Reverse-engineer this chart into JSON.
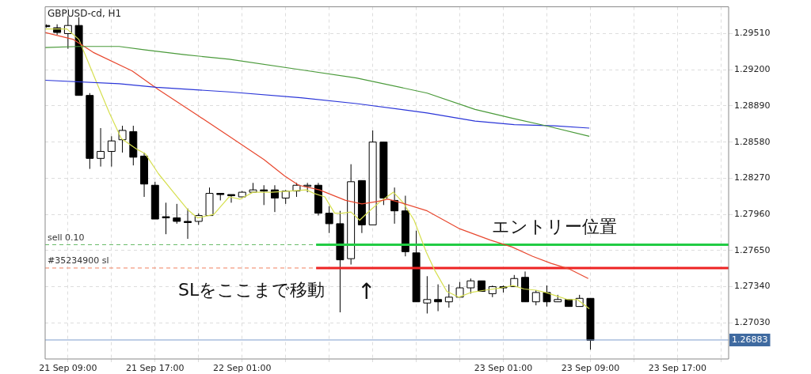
{
  "chart_data": {
    "type": "candlestick",
    "title": "GBPUSD-cd, H1",
    "color": "#000000",
    "colors": [
      "#000000",
      "#000000",
      "#ffffff",
      "#000000",
      "#000000",
      "#ffffff",
      "#ffffff",
      "#ffffff",
      "#000000",
      "#000000",
      "#000000",
      "#000000",
      "#000000",
      "#000000",
      "#ffffff",
      "#ffffff",
      "#000000",
      "#000000",
      "#ffffff",
      "#ffffff",
      "#000000",
      "#000000",
      "#ffffff",
      "#ffffff",
      "#ffffff",
      "#000000",
      "#000000",
      "#000000",
      "#ffffff",
      "#000000",
      "#ffffff",
      "#000000",
      "#000000",
      "#000000",
      "#000000",
      "#ffffff",
      "#000000",
      "#ffffff",
      "#ffffff",
      "#ffffff",
      "#000000",
      "#ffffff",
      "#000000",
      "#ffffff",
      "#000000",
      "#ffffff",
      "#000000",
      "#ffffff",
      "#000000",
      "#ffffff",
      "#000000"
    ],
    "x": [
      "--09-21T07:00",
      "--09-21T08:00",
      "--09-21T09:00",
      "--09-21T10:00",
      "--09-21T11:00",
      "--09-21T12:00",
      "--09-21T13:00",
      "--09-21T14:00",
      "--09-21T15:00",
      "--09-21T16:00",
      "--09-21T17:00",
      "--09-21T18:00",
      "--09-21T19:00",
      "--09-21T20:00",
      "--09-21T21:00",
      "--09-21T22:00",
      "--09-21T23:00",
      "--09-22T00:00",
      "--09-22T01:00",
      "--09-22T02:00",
      "--09-22T03:00",
      "--09-22T04:00",
      "--09-22T05:00",
      "--09-22T06:00",
      "--09-22T07:00",
      "--09-22T08:00",
      "--09-22T09:00",
      "--09-22T10:00",
      "--09-22T11:00",
      "--09-22T12:00",
      "--09-22T13:00",
      "--09-22T14:00",
      "--09-22T15:00",
      "--09-22T16:00",
      "--09-22T17:00",
      "--09-22T18:00",
      "--09-22T19:00",
      "--09-22T20:00",
      "--09-22T21:00",
      "--09-22T22:00",
      "--09-22T23:00",
      "--09-23T00:00",
      "--09-23T01:00",
      "--09-23T02:00",
      "--09-23T03:00",
      "--09-23T04:00",
      "--09-23T05:00",
      "--09-23T06:00",
      "--09-23T07:00",
      "--09-23T08:00",
      "--09-23T09:00"
    ],
    "ohlc": [
      [
        1.2958,
        1.2959,
        1.2956,
        1.2957
      ],
      [
        1.2956,
        1.2959,
        1.295,
        1.2952
      ],
      [
        1.2951,
        1.2966,
        1.2938,
        1.2958
      ],
      [
        1.2958,
        1.2965,
        1.2898,
        1.2898
      ],
      [
        1.2898,
        1.29,
        1.2835,
        1.2844
      ],
      [
        1.2844,
        1.287,
        1.2837,
        1.285
      ],
      [
        1.285,
        1.2863,
        1.2837,
        1.2859
      ],
      [
        1.286,
        1.2872,
        1.2849,
        1.2868
      ],
      [
        1.2867,
        1.2872,
        1.2838,
        1.2845
      ],
      [
        1.2846,
        1.2849,
        1.2811,
        1.2822
      ],
      [
        1.2821,
        1.2824,
        1.2792,
        1.2792
      ],
      [
        1.2794,
        1.2806,
        1.2779,
        1.2793
      ],
      [
        1.2793,
        1.2805,
        1.2788,
        1.279
      ],
      [
        1.279,
        1.2801,
        1.2775,
        1.279
      ],
      [
        1.279,
        1.2797,
        1.2787,
        1.2795
      ],
      [
        1.2795,
        1.2819,
        1.2795,
        1.2814
      ],
      [
        1.2814,
        1.2814,
        1.2808,
        1.2813
      ],
      [
        1.2813,
        1.2813,
        1.2806,
        1.2812
      ],
      [
        1.2811,
        1.2816,
        1.2811,
        1.2815
      ],
      [
        1.2815,
        1.2823,
        1.2815,
        1.2817
      ],
      [
        1.2817,
        1.2821,
        1.2804,
        1.2817
      ],
      [
        1.2817,
        1.2821,
        1.2798,
        1.281
      ],
      [
        1.281,
        1.2817,
        1.2805,
        1.2816
      ],
      [
        1.2816,
        1.2823,
        1.2811,
        1.2821
      ],
      [
        1.282,
        1.2823,
        1.2815,
        1.2821
      ],
      [
        1.2821,
        1.2823,
        1.2795,
        1.2797
      ],
      [
        1.2797,
        1.2803,
        1.278,
        1.2788
      ],
      [
        1.2788,
        1.2799,
        1.2712,
        1.2757
      ],
      [
        1.2758,
        1.2839,
        1.2753,
        1.2824
      ],
      [
        1.2825,
        1.2825,
        1.278,
        1.2787
      ],
      [
        1.2787,
        1.2868,
        1.2787,
        1.2858
      ],
      [
        1.2858,
        1.2858,
        1.2804,
        1.281
      ],
      [
        1.2808,
        1.2819,
        1.2788,
        1.2799
      ],
      [
        1.2799,
        1.2812,
        1.276,
        1.2764
      ],
      [
        1.2763,
        1.2782,
        1.2721,
        1.2721
      ],
      [
        1.272,
        1.2743,
        1.2711,
        1.2723
      ],
      [
        1.2723,
        1.2736,
        1.2713,
        1.2721
      ],
      [
        1.2721,
        1.2736,
        1.2716,
        1.2725
      ],
      [
        1.2725,
        1.2738,
        1.2725,
        1.2733
      ],
      [
        1.2733,
        1.2741,
        1.2728,
        1.2739
      ],
      [
        1.2739,
        1.2739,
        1.273,
        1.273
      ],
      [
        1.2728,
        1.2735,
        1.2725,
        1.2734
      ],
      [
        1.2734,
        1.2735,
        1.2729,
        1.2734
      ],
      [
        1.2734,
        1.2744,
        1.2734,
        1.2741
      ],
      [
        1.2742,
        1.2747,
        1.2721,
        1.2721
      ],
      [
        1.2721,
        1.2731,
        1.2718,
        1.2729
      ],
      [
        1.2729,
        1.2735,
        1.2717,
        1.2721
      ],
      [
        1.2721,
        1.2727,
        1.2721,
        1.2723
      ],
      [
        1.2723,
        1.2723,
        1.2717,
        1.2717
      ],
      [
        1.2717,
        1.2727,
        1.2717,
        1.2724
      ],
      [
        1.2724,
        1.2724,
        1.268,
        1.2688
      ]
    ],
    "series": [
      {
        "type": "line",
        "color": "#4a9a3a",
        "x": [
          "--09-21T06:54",
          "--09-21T10:00",
          "--09-21T13:42",
          "--09-21T16:06",
          "--09-21T19:42",
          "--09-21T23:48",
          "--09-22T06:24",
          "--09-22T11:30",
          "--09-22T18:00",
          "--09-22T22:24",
          "--09-23T02:00",
          "--09-23T04:54",
          "--09-23T08:54"
        ],
        "values": [
          1.2939,
          1.294,
          1.294,
          1.2937,
          1.2933,
          1.2929,
          1.292,
          1.2913,
          1.29,
          1.2886,
          1.2878,
          1.2872,
          1.2863
        ]
      },
      {
        "type": "line",
        "color": "#2a35d8",
        "x": [
          "--09-21T06:54",
          "--09-21T13:42",
          "--09-21T17:06",
          "--09-21T23:48",
          "--09-22T06:24",
          "--09-22T11:30",
          "--09-22T18:00",
          "--09-22T22:24",
          "--09-23T02:00",
          "--09-23T05:42",
          "--09-23T08:54"
        ],
        "values": [
          1.2911,
          1.2908,
          1.2905,
          1.2901,
          1.2896,
          1.2891,
          1.2883,
          1.2876,
          1.2873,
          1.2872,
          1.287
        ]
      },
      {
        "type": "line",
        "color": "#e8482f",
        "x": [
          "--09-21T06:54",
          "--09-21T09:30",
          "--09-21T11:18",
          "--09-21T14:54",
          "--09-21T17:18",
          "--09-21T20:54",
          "--09-21T23:48",
          "--09-22T03:00",
          "--09-22T04:54",
          "--09-22T06:12",
          "--09-22T08:06",
          "--09-22T10:30",
          "--09-22T12:00",
          "--09-22T13:24",
          "--09-22T14:24",
          "--09-22T15:36",
          "--09-22T18:00",
          "--09-22T20:54",
          "--09-22T23:48",
          "--09-23T01:48",
          "--09-23T03:42",
          "--09-23T05:24",
          "--09-23T07:06",
          "--09-23T08:48"
        ],
        "values": [
          1.2952,
          1.2946,
          1.2935,
          1.2919,
          1.2903,
          1.2881,
          1.2863,
          1.2843,
          1.2829,
          1.2821,
          1.2817,
          1.2808,
          1.2805,
          1.2807,
          1.2809,
          1.2806,
          1.2799,
          1.2784,
          1.2774,
          1.2768,
          1.276,
          1.2754,
          1.2749,
          1.2741
        ]
      },
      {
        "type": "line",
        "color": "#d6df4f",
        "x": [
          "--09-21T06:54",
          "--09-21T08:54",
          "--09-21T10:00",
          "--09-21T11:30",
          "--09-21T12:48",
          "--09-21T13:54",
          "--09-21T15:18",
          "--09-21T16:06",
          "--09-21T17:18",
          "--09-21T18:36",
          "--09-21T20:00",
          "--09-21T20:54",
          "--09-21T22:24",
          "--09-21T23:48",
          "--09-22T00:48",
          "--09-22T02:00",
          "--09-22T03:42",
          "--09-22T05:24",
          "--09-22T06:54",
          "--09-22T07:36",
          "--09-22T08:36",
          "--09-22T09:30",
          "--09-22T10:12",
          "--09-22T11:00",
          "--09-22T11:48",
          "--09-22T12:42",
          "--09-22T13:42",
          "--09-22T14:54",
          "--09-22T15:48",
          "--09-22T16:48",
          "--09-22T17:54",
          "--09-22T18:42",
          "--09-22T19:48",
          "--09-22T20:54",
          "--09-22T22:00",
          "--09-22T23:18",
          "--09-23T00:48",
          "--09-23T01:54",
          "--09-23T02:54",
          "--09-23T04:00",
          "--09-23T04:54",
          "--09-23T05:54",
          "--09-23T06:54",
          "--09-23T07:48",
          "--09-23T08:54"
        ],
        "values": [
          1.2955,
          1.2955,
          1.2946,
          1.2912,
          1.2883,
          1.2861,
          1.2852,
          1.2848,
          1.2831,
          1.2816,
          1.28,
          1.2793,
          1.2796,
          1.2811,
          1.2809,
          1.2815,
          1.2815,
          1.2816,
          1.2817,
          1.2814,
          1.2811,
          1.2797,
          1.2797,
          1.2798,
          1.2791,
          1.2799,
          1.2807,
          1.2815,
          1.2806,
          1.2791,
          1.2764,
          1.2748,
          1.273,
          1.2725,
          1.2729,
          1.2731,
          1.2733,
          1.2735,
          1.2732,
          1.2731,
          1.2729,
          1.2726,
          1.2723,
          1.2723,
          1.2715
        ]
      },
      {
        "type": "line",
        "color": "#22cc44",
        "x": [
          "--09-22T07:48",
          "--09-23T21:42"
        ],
        "values": [
          1.277,
          1.277
        ]
      },
      {
        "type": "line",
        "color": "#ee2222",
        "x": [
          "--09-22T07:48",
          "--09-23T21:42"
        ],
        "values": [
          1.275,
          1.275
        ]
      }
    ],
    "ref_lines": [
      {
        "axis": "y",
        "value": 1.277,
        "label": "sell 0.10",
        "color": "#66bb66",
        "line_style": "dashed"
      },
      {
        "axis": "y",
        "value": 1.275,
        "label": "#35234900 sl",
        "color": "#f08060",
        "line_style": "dashed"
      },
      {
        "axis": "y",
        "value": 1.26883,
        "label": "1.26883",
        "color": "#7d9ccc",
        "line_style": "solid"
      }
    ],
    "annotations": [
      "エントリー位置",
      "SLをここまで移動",
      "↑"
    ],
    "xlim": [
      "--09-21T06:54",
      "--09-23T21:42"
    ],
    "xticks": [
      {
        "value": "--09-21T09:00",
        "label": "21 Sep 09:00"
      },
      {
        "value": "--09-21T13:00",
        "label": null
      },
      {
        "value": "--09-21T17:00",
        "label": "21 Sep 17:00"
      },
      {
        "value": "--09-21T21:00",
        "label": null
      },
      {
        "value": "--09-22T01:00",
        "label": "22 Sep 01:00"
      },
      {
        "value": "--09-22T05:00",
        "label": null
      },
      {
        "value": "--09-22T09:00",
        "label": null
      },
      {
        "value": "--09-22T13:00",
        "label": null
      },
      {
        "value": "--09-22T17:00",
        "label": null
      },
      {
        "value": "--09-22T21:00",
        "label": null
      },
      {
        "value": "--09-23T01:00",
        "label": "23 Sep 01:00"
      },
      {
        "value": "--09-23T05:00",
        "label": null
      },
      {
        "value": "--09-23T09:00",
        "label": "23 Sep 09:00"
      },
      {
        "value": "--09-23T13:00",
        "label": null
      },
      {
        "value": "--09-23T17:00",
        "label": "23 Sep 17:00"
      },
      {
        "value": "--09-23T21:00",
        "label": null
      }
    ],
    "ylim": [
      1.2672,
      1.2974
    ],
    "yticks": [
      {
        "value": 1.2703,
        "label": "1.27030"
      },
      {
        "value": 1.2734,
        "label": "1.27340"
      },
      {
        "value": 1.2765,
        "label": "1.27650"
      },
      {
        "value": 1.2796,
        "label": "1.27960"
      },
      {
        "value": 1.2827,
        "label": "1.28270"
      },
      {
        "value": 1.2858,
        "label": "1.28580"
      },
      {
        "value": 1.2889,
        "label": "1.28890"
      },
      {
        "value": 1.292,
        "label": "1.29200"
      },
      {
        "value": 1.2951,
        "label": "1.29510"
      }
    ],
    "grid": true,
    "legend": false,
    "marker": "none",
    "line_style": "solid"
  }
}
